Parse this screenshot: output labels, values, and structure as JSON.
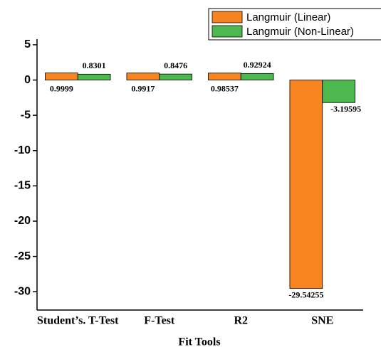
{
  "chart_data": {
    "type": "bar",
    "xlabel": "Fit Tools",
    "categories": [
      "Student’s. T-Test",
      "F-Test",
      "R2",
      "SNE"
    ],
    "series": [
      {
        "name": "Langmuir (Linear)",
        "color": "#f7841f",
        "values": [
          0.9999,
          0.9917,
          0.98537,
          -29.54255
        ]
      },
      {
        "name": "Langmuir (Non-Linear)",
        "color": "#4db84e",
        "values": [
          0.8301,
          0.8476,
          0.92924,
          -3.19595
        ]
      }
    ],
    "ylim": [
      -32.6,
      5.8
    ],
    "yticks": [
      5,
      0,
      -5,
      -10,
      -15,
      -20,
      -25,
      -30
    ],
    "legend": "upper right"
  }
}
